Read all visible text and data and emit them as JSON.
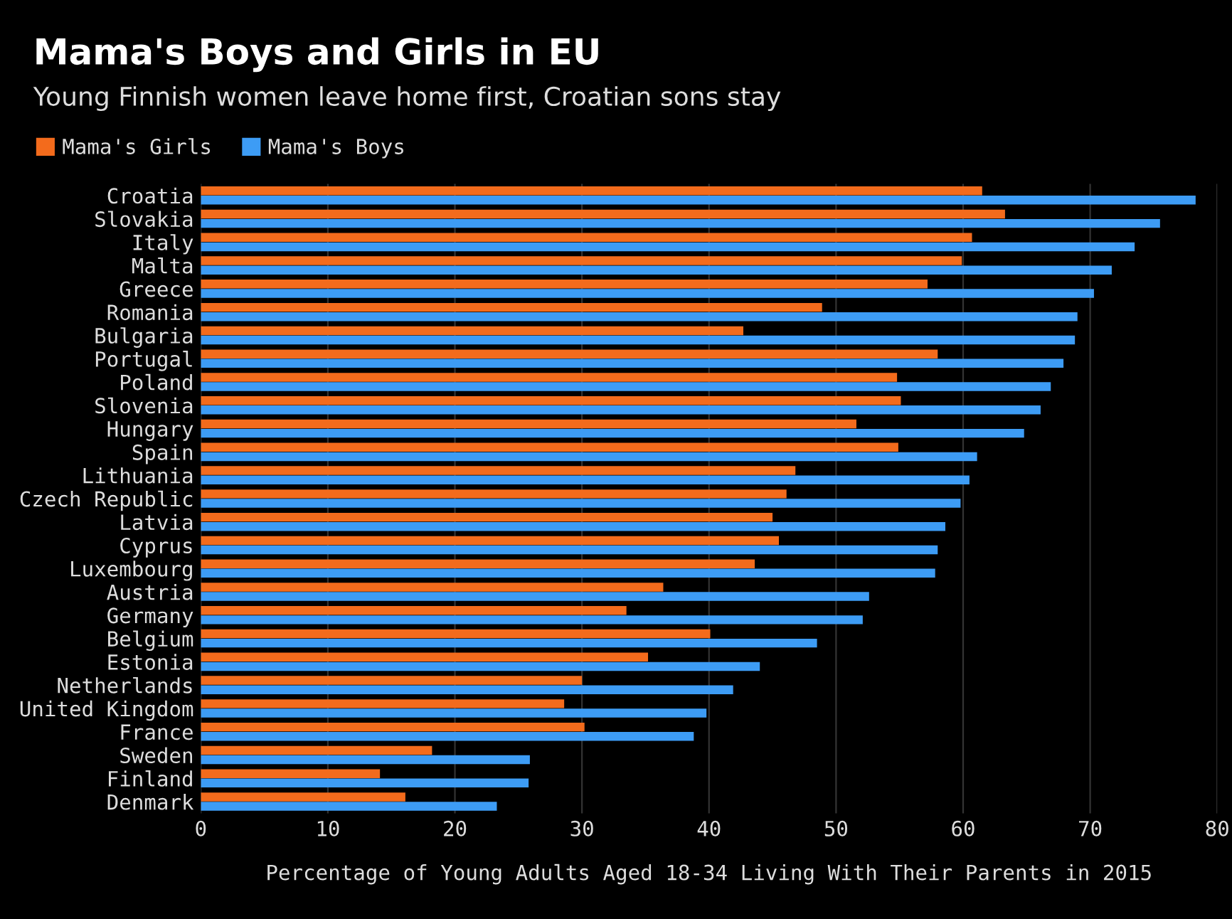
{
  "chart_data": {
    "type": "bar",
    "orientation": "horizontal",
    "title": "Mama's Boys and Girls in EU",
    "subtitle": "Young Finnish women leave home first, Croatian sons stay",
    "xlabel": "Percentage of Young Adults Aged 18-34 Living With Their Parents in 2015",
    "categories": [
      "Croatia",
      "Slovakia",
      "Italy",
      "Malta",
      "Greece",
      "Romania",
      "Bulgaria",
      "Portugal",
      "Poland",
      "Slovenia",
      "Hungary",
      "Spain",
      "Lithuania",
      "Czech Republic",
      "Latvia",
      "Cyprus",
      "Luxembourg",
      "Austria",
      "Germany",
      "Belgium",
      "Estonia",
      "Netherlands",
      "United Kingdom",
      "France",
      "Sweden",
      "Finland",
      "Denmark"
    ],
    "series": [
      {
        "name": "Mama's Girls",
        "color": "#f36b1c",
        "values": [
          61.5,
          63.3,
          60.7,
          59.9,
          57.2,
          48.9,
          42.7,
          58.0,
          54.8,
          55.1,
          51.6,
          54.9,
          46.8,
          46.1,
          45.0,
          45.5,
          43.6,
          36.4,
          33.5,
          40.1,
          35.2,
          30.0,
          28.6,
          30.2,
          18.2,
          14.1,
          16.1
        ]
      },
      {
        "name": "Mama's Boys",
        "color": "#3d9cf5",
        "values": [
          78.3,
          75.5,
          73.5,
          71.7,
          70.3,
          69.0,
          68.8,
          67.9,
          66.9,
          66.1,
          64.8,
          61.1,
          60.5,
          59.8,
          58.6,
          58.0,
          57.8,
          52.6,
          52.1,
          48.5,
          44.0,
          41.9,
          39.8,
          38.8,
          25.9,
          25.8,
          23.3
        ]
      }
    ],
    "xlim": [
      0,
      80
    ],
    "xticks": [
      0,
      10,
      20,
      30,
      40,
      50,
      60,
      70,
      80
    ],
    "grid": "x",
    "legend": "top left"
  }
}
